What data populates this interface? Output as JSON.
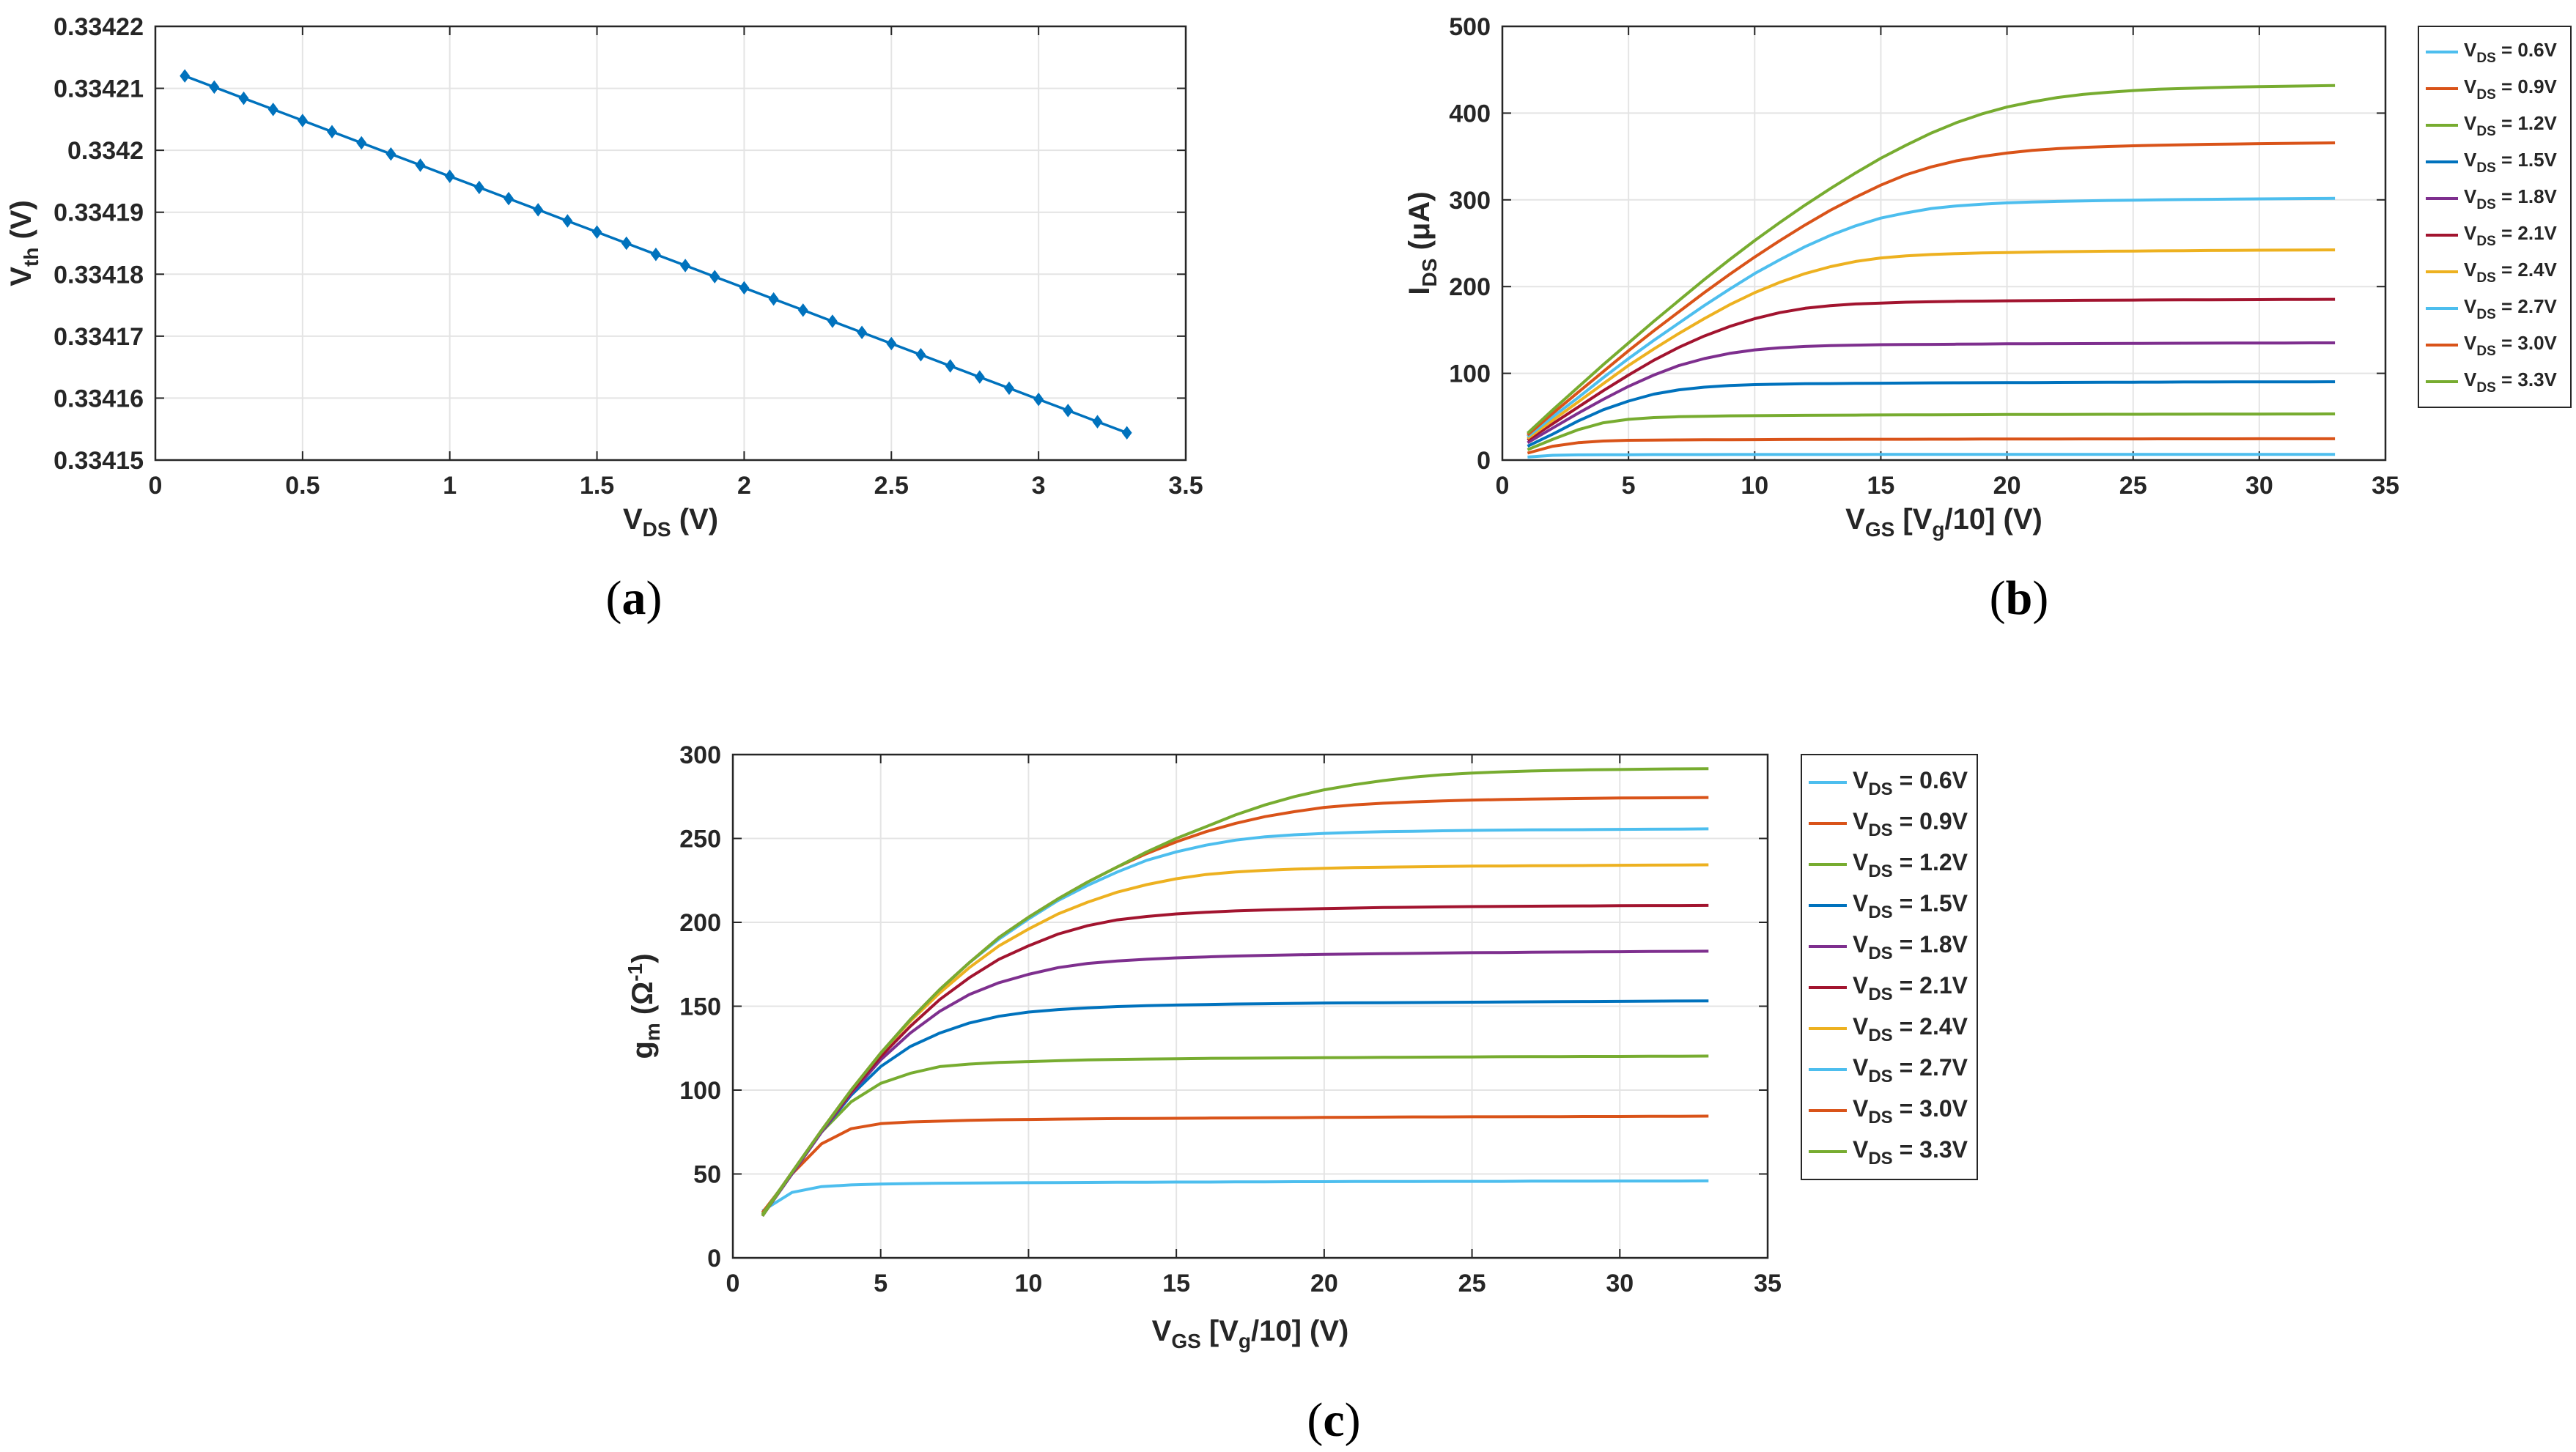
{
  "chart_data": [
    {
      "id": "a",
      "type": "line",
      "caption": "a",
      "xlabel": {
        "main": "V",
        "sub": "DS",
        "rest": " (V)"
      },
      "ylabel": {
        "main": "V",
        "sub": "th",
        "rest": " (V)"
      },
      "xlim": [
        0,
        3.5
      ],
      "ylim": [
        0.33415,
        0.33422
      ],
      "xticks": [
        "0",
        "0.5",
        "1",
        "1.5",
        "2",
        "2.5",
        "3",
        "3.5"
      ],
      "yticks": [
        "0.33415",
        "0.33416",
        "0.33417",
        "0.33418",
        "0.33419",
        "0.3342",
        "0.33421",
        "0.33422"
      ],
      "grid": true,
      "series": [
        {
          "name": "Vth",
          "color": "#0072bd",
          "marker": "diamond",
          "x": [
            0.1,
            0.2,
            0.3,
            0.4,
            0.5,
            0.6,
            0.7,
            0.8,
            0.9,
            1.0,
            1.1,
            1.2,
            1.3,
            1.4,
            1.5,
            1.6,
            1.7,
            1.8,
            1.9,
            2.0,
            2.1,
            2.2,
            2.3,
            2.4,
            2.5,
            2.6,
            2.7,
            2.8,
            2.9,
            3.0,
            3.1,
            3.2,
            3.3
          ],
          "y": [
            0.334212,
            0.3342102,
            0.3342084,
            0.3342066,
            0.3342048,
            0.334203,
            0.3342012,
            0.3341994,
            0.3341976,
            0.3341958,
            0.334194,
            0.3341922,
            0.3341904,
            0.3341886,
            0.3341868,
            0.334185,
            0.3341832,
            0.3341814,
            0.3341796,
            0.3341778,
            0.334176,
            0.3341742,
            0.3341724,
            0.3341706,
            0.3341688,
            0.334167,
            0.3341652,
            0.3341634,
            0.3341616,
            0.3341598,
            0.334158,
            0.3341562,
            0.3341544
          ]
        }
      ]
    },
    {
      "id": "b",
      "type": "line",
      "caption": "b",
      "xlabel": {
        "main": "V",
        "sub": "GS",
        "rest": " [V",
        "sub2": "g",
        "rest2": "/10] (V)"
      },
      "ylabel": {
        "main": "I",
        "sub": "DS",
        "rest": " (μA)"
      },
      "xlim": [
        0,
        35
      ],
      "ylim": [
        0,
        500
      ],
      "xticks": [
        "0",
        "5",
        "10",
        "15",
        "20",
        "25",
        "30",
        "35"
      ],
      "yticks": [
        "0",
        "100",
        "200",
        "300",
        "400",
        "500"
      ],
      "grid": true,
      "legend_position": "outside-right",
      "x": [
        1,
        2,
        3,
        4,
        5,
        6,
        7,
        8,
        9,
        10,
        11,
        12,
        13,
        14,
        15,
        16,
        17,
        18,
        19,
        20,
        21,
        22,
        23,
        24,
        25,
        26,
        27,
        28,
        29,
        30,
        31,
        32,
        33
      ],
      "series": [
        {
          "name_main": "V",
          "name_sub": "DS",
          "name_rest": " = 0.6V",
          "color": "#4dbeee",
          "values": [
            3.5,
            5.5,
            6,
            6.1,
            6.2,
            6.3,
            6.3,
            6.3,
            6.4,
            6.4,
            6.4,
            6.4,
            6.4,
            6.4,
            6.5,
            6.5,
            6.5,
            6.5,
            6.5,
            6.5,
            6.5,
            6.5,
            6.5,
            6.5,
            6.5,
            6.5,
            6.5,
            6.5,
            6.5,
            6.5,
            6.5,
            6.5,
            6.5
          ]
        },
        {
          "name_main": "V",
          "name_sub": "DS",
          "name_rest": " = 0.9V",
          "color": "#d95319",
          "values": [
            8,
            16,
            20,
            22,
            22.8,
            23,
            23.2,
            23.4,
            23.5,
            23.6,
            23.7,
            23.8,
            23.9,
            24,
            24,
            24,
            24.1,
            24.1,
            24.2,
            24.2,
            24.3,
            24.3,
            24.4,
            24.4,
            24.4,
            24.5,
            24.5,
            24.5,
            24.5,
            24.6,
            24.6,
            24.6,
            24.6
          ]
        },
        {
          "name_main": "V",
          "name_sub": "DS",
          "name_rest": " = 1.2V",
          "color": "#77ac30",
          "values": [
            12,
            24,
            35,
            43,
            47,
            49,
            50,
            50.5,
            51,
            51.2,
            51.4,
            51.6,
            51.8,
            51.9,
            52,
            52.1,
            52.2,
            52.3,
            52.4,
            52.5,
            52.6,
            52.6,
            52.7,
            52.8,
            52.8,
            52.9,
            52.9,
            53,
            53,
            53,
            53.1,
            53.1,
            53.2
          ]
        },
        {
          "name_main": "V",
          "name_sub": "DS",
          "name_rest": " = 1.5V",
          "color": "#0072bd",
          "values": [
            16,
            30,
            45,
            58,
            68,
            76,
            81,
            84,
            86,
            87,
            87.5,
            88,
            88.2,
            88.4,
            88.6,
            88.8,
            89,
            89.1,
            89.2,
            89.3,
            89.4,
            89.5,
            89.6,
            89.7,
            89.8,
            89.9,
            90,
            90,
            90.1,
            90.1,
            90.2,
            90.2,
            90.3
          ]
        },
        {
          "name_main": "V",
          "name_sub": "DS",
          "name_rest": " = 1.8V",
          "color": "#7e2f8e",
          "values": [
            20,
            37,
            54,
            70,
            85,
            98,
            109,
            117,
            123,
            127,
            129.5,
            131,
            132,
            132.5,
            133,
            133.2,
            133.4,
            133.6,
            133.8,
            134,
            134.1,
            134.2,
            134.3,
            134.4,
            134.5,
            134.6,
            134.7,
            134.8,
            134.9,
            135,
            135,
            135.1,
            135.1
          ]
        },
        {
          "name_main": "V",
          "name_sub": "DS",
          "name_rest": " = 2.1V",
          "color": "#a2142f",
          "values": [
            23,
            42,
            61,
            80,
            98,
            115,
            130,
            143,
            154,
            163,
            170,
            175,
            178,
            180,
            181,
            182,
            182.5,
            183,
            183.3,
            183.6,
            183.8,
            184,
            184.2,
            184.4,
            184.5,
            184.6,
            184.7,
            184.8,
            184.9,
            185,
            185.1,
            185.2,
            185.3
          ]
        },
        {
          "name_main": "V",
          "name_sub": "DS",
          "name_rest": " = 2.4V",
          "color": "#edb120",
          "values": [
            25,
            46,
            67,
            88,
            109,
            128,
            146,
            163,
            179,
            193,
            205,
            215,
            223,
            229,
            233,
            235.5,
            237,
            238,
            238.8,
            239.3,
            239.8,
            240.2,
            240.5,
            240.8,
            241,
            241.2,
            241.4,
            241.6,
            241.8,
            242,
            242.1,
            242.2,
            242.3
          ]
        },
        {
          "name_main": "V",
          "name_sub": "DS",
          "name_rest": " = 2.7V",
          "color": "#4dbeee",
          "values": [
            27,
            50,
            72,
            95,
            117,
            138,
            158,
            178,
            197,
            215,
            231,
            246,
            259,
            270,
            279,
            285,
            290,
            293,
            295,
            296.5,
            297.5,
            298.2,
            298.8,
            299.3,
            299.7,
            300,
            300.3,
            300.6,
            300.9,
            301.1,
            301.3,
            301.5,
            301.7
          ]
        },
        {
          "name_main": "V",
          "name_sub": "DS",
          "name_rest": " = 3.0V",
          "color": "#d95319",
          "values": [
            29,
            54,
            78,
            102,
            126,
            149,
            171,
            193,
            214,
            234,
            253,
            271,
            288,
            303,
            317,
            329,
            338,
            345,
            350,
            354,
            357,
            359,
            360.5,
            361.5,
            362.3,
            363,
            363.5,
            364,
            364.4,
            364.8,
            365.1,
            365.4,
            365.7
          ]
        },
        {
          "name_main": "V",
          "name_sub": "DS",
          "name_rest": " = 3.3V",
          "color": "#77ac30",
          "values": [
            31,
            58,
            84,
            110,
            135,
            160,
            184,
            208,
            231,
            253,
            274,
            294,
            313,
            331,
            348,
            363,
            377,
            389,
            399,
            407,
            413,
            418,
            421.5,
            424,
            426,
            427.5,
            428.5,
            429.3,
            430,
            430.5,
            431,
            431.4,
            431.8
          ]
        }
      ]
    },
    {
      "id": "c",
      "type": "line",
      "caption": "c",
      "xlabel": {
        "main": "V",
        "sub": "GS",
        "rest": " [V",
        "sub2": "g",
        "rest2": "/10] (V)"
      },
      "ylabel": {
        "main": "g",
        "sub": "m",
        "rest": " (Ω",
        "sup": "-1",
        "rest2": ")"
      },
      "xlim": [
        0,
        35
      ],
      "ylim": [
        0,
        300
      ],
      "xticks": [
        "0",
        "5",
        "10",
        "15",
        "20",
        "25",
        "30",
        "35"
      ],
      "yticks": [
        "0",
        "50",
        "100",
        "150",
        "200",
        "250",
        "300"
      ],
      "grid": true,
      "legend_position": "outside-right",
      "x": [
        1,
        2,
        3,
        4,
        5,
        6,
        7,
        8,
        9,
        10,
        11,
        12,
        13,
        14,
        15,
        16,
        17,
        18,
        19,
        20,
        21,
        22,
        23,
        24,
        25,
        26,
        27,
        28,
        29,
        30,
        31,
        32,
        33
      ],
      "series": [
        {
          "name_main": "V",
          "name_sub": "DS",
          "name_rest": " = 0.6V",
          "color": "#4dbeee",
          "values": [
            28,
            39,
            42.5,
            43.5,
            44,
            44.3,
            44.5,
            44.6,
            44.7,
            44.8,
            44.9,
            45,
            45.1,
            45.1,
            45.2,
            45.2,
            45.3,
            45.3,
            45.4,
            45.4,
            45.5,
            45.5,
            45.5,
            45.6,
            45.6,
            45.6,
            45.7,
            45.7,
            45.7,
            45.8,
            45.8,
            45.8,
            45.9
          ]
        },
        {
          "name_main": "V",
          "name_sub": "DS",
          "name_rest": " = 0.9V",
          "color": "#d95319",
          "values": [
            27,
            50,
            68,
            77,
            80,
            81,
            81.5,
            82,
            82.3,
            82.5,
            82.7,
            82.9,
            83,
            83.1,
            83.2,
            83.3,
            83.4,
            83.5,
            83.6,
            83.7,
            83.8,
            83.9,
            84,
            84,
            84.1,
            84.1,
            84.2,
            84.2,
            84.3,
            84.3,
            84.4,
            84.4,
            84.5
          ]
        },
        {
          "name_main": "V",
          "name_sub": "DS",
          "name_rest": " = 1.2V",
          "color": "#77ac30",
          "values": [
            26,
            51,
            75,
            93,
            104,
            110,
            114,
            115.5,
            116.5,
            117,
            117.5,
            118,
            118.3,
            118.5,
            118.7,
            118.9,
            119,
            119.1,
            119.2,
            119.3,
            119.4,
            119.5,
            119.6,
            119.7,
            119.8,
            119.9,
            120,
            120,
            120.1,
            120.1,
            120.2,
            120.2,
            120.3
          ]
        },
        {
          "name_main": "V",
          "name_sub": "DS",
          "name_rest": " = 1.5V",
          "color": "#0072bd",
          "values": [
            25,
            50,
            75,
            97,
            114,
            126,
            134,
            140,
            144,
            146.5,
            148,
            149,
            149.8,
            150.3,
            150.7,
            151,
            151.3,
            151.5,
            151.7,
            151.9,
            152,
            152.1,
            152.2,
            152.3,
            152.4,
            152.5,
            152.6,
            152.7,
            152.8,
            152.9,
            153,
            153.1,
            153.2
          ]
        },
        {
          "name_main": "V",
          "name_sub": "DS",
          "name_rest": " = 1.8V",
          "color": "#7e2f8e",
          "values": [
            25,
            50,
            75,
            98,
            118,
            134,
            147,
            157,
            164,
            169,
            173,
            175.5,
            177,
            178,
            178.8,
            179.4,
            179.9,
            180.3,
            180.6,
            180.9,
            181.1,
            181.3,
            181.5,
            181.7,
            181.9,
            182,
            182.2,
            182.3,
            182.4,
            182.5,
            182.6,
            182.7,
            182.8
          ]
        },
        {
          "name_main": "V",
          "name_sub": "DS",
          "name_rest": " = 2.1V",
          "color": "#a2142f",
          "values": [
            25,
            51,
            76,
            99,
            120,
            138,
            154,
            167,
            178,
            186,
            193,
            198,
            201.5,
            203.5,
            205,
            206,
            206.8,
            207.4,
            207.8,
            208.2,
            208.5,
            208.8,
            209,
            209.2,
            209.4,
            209.5,
            209.6,
            209.7,
            209.8,
            209.9,
            210,
            210,
            210.1
          ]
        },
        {
          "name_main": "V",
          "name_sub": "DS",
          "name_rest": " = 2.4V",
          "color": "#edb120",
          "values": [
            25,
            51,
            76,
            100,
            122,
            141,
            158,
            173,
            186,
            196,
            205,
            212,
            218,
            222.5,
            226,
            228.5,
            230,
            231,
            231.7,
            232.2,
            232.6,
            232.9,
            233.1,
            233.3,
            233.5,
            233.6,
            233.7,
            233.8,
            233.9,
            234,
            234.1,
            234.2,
            234.3
          ]
        },
        {
          "name_main": "V",
          "name_sub": "DS",
          "name_rest": " = 2.7V",
          "color": "#4dbeee",
          "values": [
            25,
            51,
            76,
            100,
            122,
            142,
            160,
            176,
            190,
            202,
            213,
            222,
            230,
            237,
            242,
            246,
            249,
            251,
            252.2,
            253,
            253.6,
            254,
            254.3,
            254.6,
            254.8,
            255,
            255.1,
            255.2,
            255.3,
            255.4,
            255.5,
            255.6,
            255.7
          ]
        },
        {
          "name_main": "V",
          "name_sub": "DS",
          "name_rest": " = 3.0V",
          "color": "#d95319",
          "values": [
            25,
            51,
            76,
            100,
            122,
            142,
            160,
            176,
            191,
            203,
            214,
            224,
            233,
            241,
            248,
            254,
            259,
            263,
            266,
            268.5,
            270,
            271,
            271.8,
            272.4,
            272.9,
            273.2,
            273.5,
            273.7,
            273.9,
            274.1,
            274.2,
            274.3,
            274.4
          ]
        },
        {
          "name_main": "V",
          "name_sub": "DS",
          "name_rest": " = 3.3V",
          "color": "#77ac30",
          "values": [
            25,
            51,
            76,
            100,
            122,
            142,
            160,
            176,
            191,
            203,
            214,
            224,
            233,
            242,
            250,
            257,
            264,
            270,
            275,
            279,
            282,
            284.5,
            286.5,
            288,
            289,
            289.7,
            290.2,
            290.6,
            290.9,
            291.1,
            291.3,
            291.5,
            291.6
          ]
        }
      ]
    }
  ]
}
